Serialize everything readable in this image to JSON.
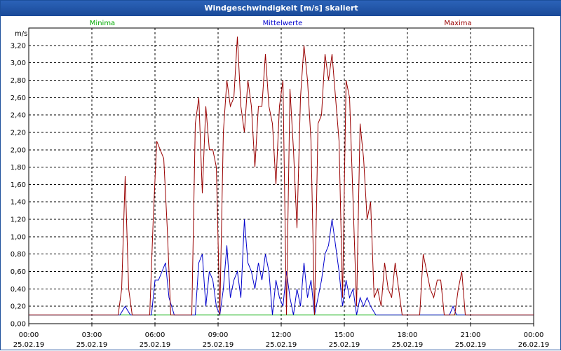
{
  "title": "Windgeschwindigkeit [m/s] skaliert",
  "colors": {
    "min": "#00aa00",
    "avg": "#0000cc",
    "max": "#990000",
    "title_bg": "#1f55a8"
  },
  "chart_data": {
    "type": "line",
    "ylabel": "m/s",
    "ylim": [
      0,
      3.4
    ],
    "yticks": [
      "0,00",
      "0,20",
      "0,40",
      "0,60",
      "0,80",
      "1,00",
      "1,20",
      "1,40",
      "1,60",
      "1,80",
      "2,00",
      "2,20",
      "2,40",
      "2,60",
      "2,80",
      "3,00",
      "3,20"
    ],
    "xlim": [
      "2019-02-25 00:00",
      "2019-02-26 00:00"
    ],
    "xticks": [
      {
        "time": "00:00",
        "date": "25.02.19"
      },
      {
        "time": "03:00",
        "date": "25.02.19"
      },
      {
        "time": "06:00",
        "date": "25.02.19"
      },
      {
        "time": "09:00",
        "date": "25.02.19"
      },
      {
        "time": "12:00",
        "date": "25.02.19"
      },
      {
        "time": "15:00",
        "date": "25.02.19"
      },
      {
        "time": "18:00",
        "date": "25.02.19"
      },
      {
        "time": "21:00",
        "date": "25.02.19"
      },
      {
        "time": "00:00",
        "date": "26.02.19"
      }
    ],
    "grid": true,
    "legend_position": "top",
    "series": [
      {
        "name": "Minima",
        "color": "#00aa00",
        "points": [
          [
            "00:00",
            0.1
          ],
          [
            "24:00",
            0.1
          ]
        ]
      },
      {
        "name": "Mittelwerte",
        "color": "#0000cc",
        "points": [
          [
            "00:00",
            0.1
          ],
          [
            "04:20",
            0.1
          ],
          [
            "04:35",
            0.2
          ],
          [
            "04:50",
            0.1
          ],
          [
            "05:50",
            0.1
          ],
          [
            "06:00",
            0.5
          ],
          [
            "06:10",
            0.5
          ],
          [
            "06:20",
            0.6
          ],
          [
            "06:30",
            0.7
          ],
          [
            "06:40",
            0.3
          ],
          [
            "06:55",
            0.1
          ],
          [
            "07:55",
            0.1
          ],
          [
            "08:05",
            0.7
          ],
          [
            "08:15",
            0.8
          ],
          [
            "08:25",
            0.2
          ],
          [
            "08:35",
            0.6
          ],
          [
            "08:45",
            0.5
          ],
          [
            "08:55",
            0.2
          ],
          [
            "09:05",
            0.1
          ],
          [
            "09:15",
            0.4
          ],
          [
            "09:25",
            0.9
          ],
          [
            "09:35",
            0.3
          ],
          [
            "09:45",
            0.5
          ],
          [
            "09:55",
            0.6
          ],
          [
            "10:05",
            0.3
          ],
          [
            "10:15",
            1.2
          ],
          [
            "10:25",
            0.7
          ],
          [
            "10:35",
            0.6
          ],
          [
            "10:45",
            0.4
          ],
          [
            "10:55",
            0.7
          ],
          [
            "11:05",
            0.5
          ],
          [
            "11:15",
            0.8
          ],
          [
            "11:25",
            0.6
          ],
          [
            "11:35",
            0.1
          ],
          [
            "11:45",
            0.5
          ],
          [
            "11:55",
            0.3
          ],
          [
            "12:05",
            0.2
          ],
          [
            "12:15",
            0.6
          ],
          [
            "12:25",
            0.3
          ],
          [
            "12:35",
            0.1
          ],
          [
            "12:45",
            0.4
          ],
          [
            "12:55",
            0.2
          ],
          [
            "13:05",
            0.7
          ],
          [
            "13:15",
            0.3
          ],
          [
            "13:25",
            0.5
          ],
          [
            "13:35",
            0.1
          ],
          [
            "13:45",
            0.3
          ],
          [
            "13:55",
            0.5
          ],
          [
            "14:05",
            0.8
          ],
          [
            "14:15",
            0.9
          ],
          [
            "14:25",
            1.2
          ],
          [
            "14:35",
            0.9
          ],
          [
            "14:45",
            0.6
          ],
          [
            "14:55",
            0.2
          ],
          [
            "15:05",
            0.5
          ],
          [
            "15:15",
            0.3
          ],
          [
            "15:25",
            0.4
          ],
          [
            "15:35",
            0.1
          ],
          [
            "15:45",
            0.3
          ],
          [
            "15:55",
            0.2
          ],
          [
            "16:05",
            0.3
          ],
          [
            "16:15",
            0.2
          ],
          [
            "16:30",
            0.1
          ],
          [
            "20:00",
            0.1
          ],
          [
            "20:10",
            0.2
          ],
          [
            "20:20",
            0.1
          ],
          [
            "24:00",
            0.1
          ]
        ]
      },
      {
        "name": "Maxima",
        "color": "#990000",
        "points": [
          [
            "00:00",
            0.1
          ],
          [
            "04:15",
            0.1
          ],
          [
            "04:25",
            0.4
          ],
          [
            "04:35",
            1.7
          ],
          [
            "04:45",
            0.4
          ],
          [
            "04:55",
            0.1
          ],
          [
            "05:45",
            0.1
          ],
          [
            "05:55",
            1.2
          ],
          [
            "06:05",
            2.1
          ],
          [
            "06:15",
            2.0
          ],
          [
            "06:25",
            1.9
          ],
          [
            "06:35",
            1.1
          ],
          [
            "06:45",
            0.1
          ],
          [
            "07:45",
            0.1
          ],
          [
            "07:55",
            2.3
          ],
          [
            "08:05",
            2.6
          ],
          [
            "08:15",
            1.5
          ],
          [
            "08:25",
            2.5
          ],
          [
            "08:35",
            2.0
          ],
          [
            "08:45",
            2.0
          ],
          [
            "08:55",
            1.8
          ],
          [
            "09:05",
            0.1
          ],
          [
            "09:15",
            2.2
          ],
          [
            "09:25",
            2.8
          ],
          [
            "09:35",
            2.5
          ],
          [
            "09:45",
            2.6
          ],
          [
            "09:55",
            3.3
          ],
          [
            "10:05",
            2.5
          ],
          [
            "10:15",
            2.2
          ],
          [
            "10:25",
            2.8
          ],
          [
            "10:35",
            2.5
          ],
          [
            "10:45",
            1.8
          ],
          [
            "10:55",
            2.5
          ],
          [
            "11:05",
            2.5
          ],
          [
            "11:15",
            3.1
          ],
          [
            "11:25",
            2.5
          ],
          [
            "11:35",
            2.3
          ],
          [
            "11:45",
            1.6
          ],
          [
            "11:55",
            2.5
          ],
          [
            "12:05",
            2.8
          ],
          [
            "12:15",
            0.1
          ],
          [
            "12:25",
            2.7
          ],
          [
            "12:35",
            2.0
          ],
          [
            "12:45",
            1.1
          ],
          [
            "12:55",
            2.6
          ],
          [
            "13:05",
            3.2
          ],
          [
            "13:15",
            2.8
          ],
          [
            "13:25",
            2.1
          ],
          [
            "13:35",
            0.1
          ],
          [
            "13:45",
            2.3
          ],
          [
            "13:55",
            2.4
          ],
          [
            "14:05",
            3.1
          ],
          [
            "14:15",
            2.8
          ],
          [
            "14:25",
            3.1
          ],
          [
            "14:35",
            2.6
          ],
          [
            "14:45",
            2.1
          ],
          [
            "14:55",
            0.3
          ],
          [
            "15:05",
            2.8
          ],
          [
            "15:15",
            2.6
          ],
          [
            "15:25",
            1.4
          ],
          [
            "15:35",
            0.2
          ],
          [
            "15:45",
            2.3
          ],
          [
            "15:55",
            1.9
          ],
          [
            "16:05",
            1.2
          ],
          [
            "16:15",
            1.4
          ],
          [
            "16:25",
            0.3
          ],
          [
            "16:35",
            0.4
          ],
          [
            "16:45",
            0.2
          ],
          [
            "16:55",
            0.7
          ],
          [
            "17:05",
            0.4
          ],
          [
            "17:15",
            0.3
          ],
          [
            "17:25",
            0.7
          ],
          [
            "17:35",
            0.4
          ],
          [
            "17:45",
            0.1
          ],
          [
            "18:35",
            0.1
          ],
          [
            "18:45",
            0.8
          ],
          [
            "18:55",
            0.6
          ],
          [
            "19:05",
            0.4
          ],
          [
            "19:15",
            0.3
          ],
          [
            "19:25",
            0.5
          ],
          [
            "19:35",
            0.5
          ],
          [
            "19:45",
            0.1
          ],
          [
            "20:15",
            0.1
          ],
          [
            "20:25",
            0.4
          ],
          [
            "20:35",
            0.6
          ],
          [
            "20:45",
            0.1
          ],
          [
            "24:00",
            0.1
          ]
        ]
      }
    ]
  }
}
